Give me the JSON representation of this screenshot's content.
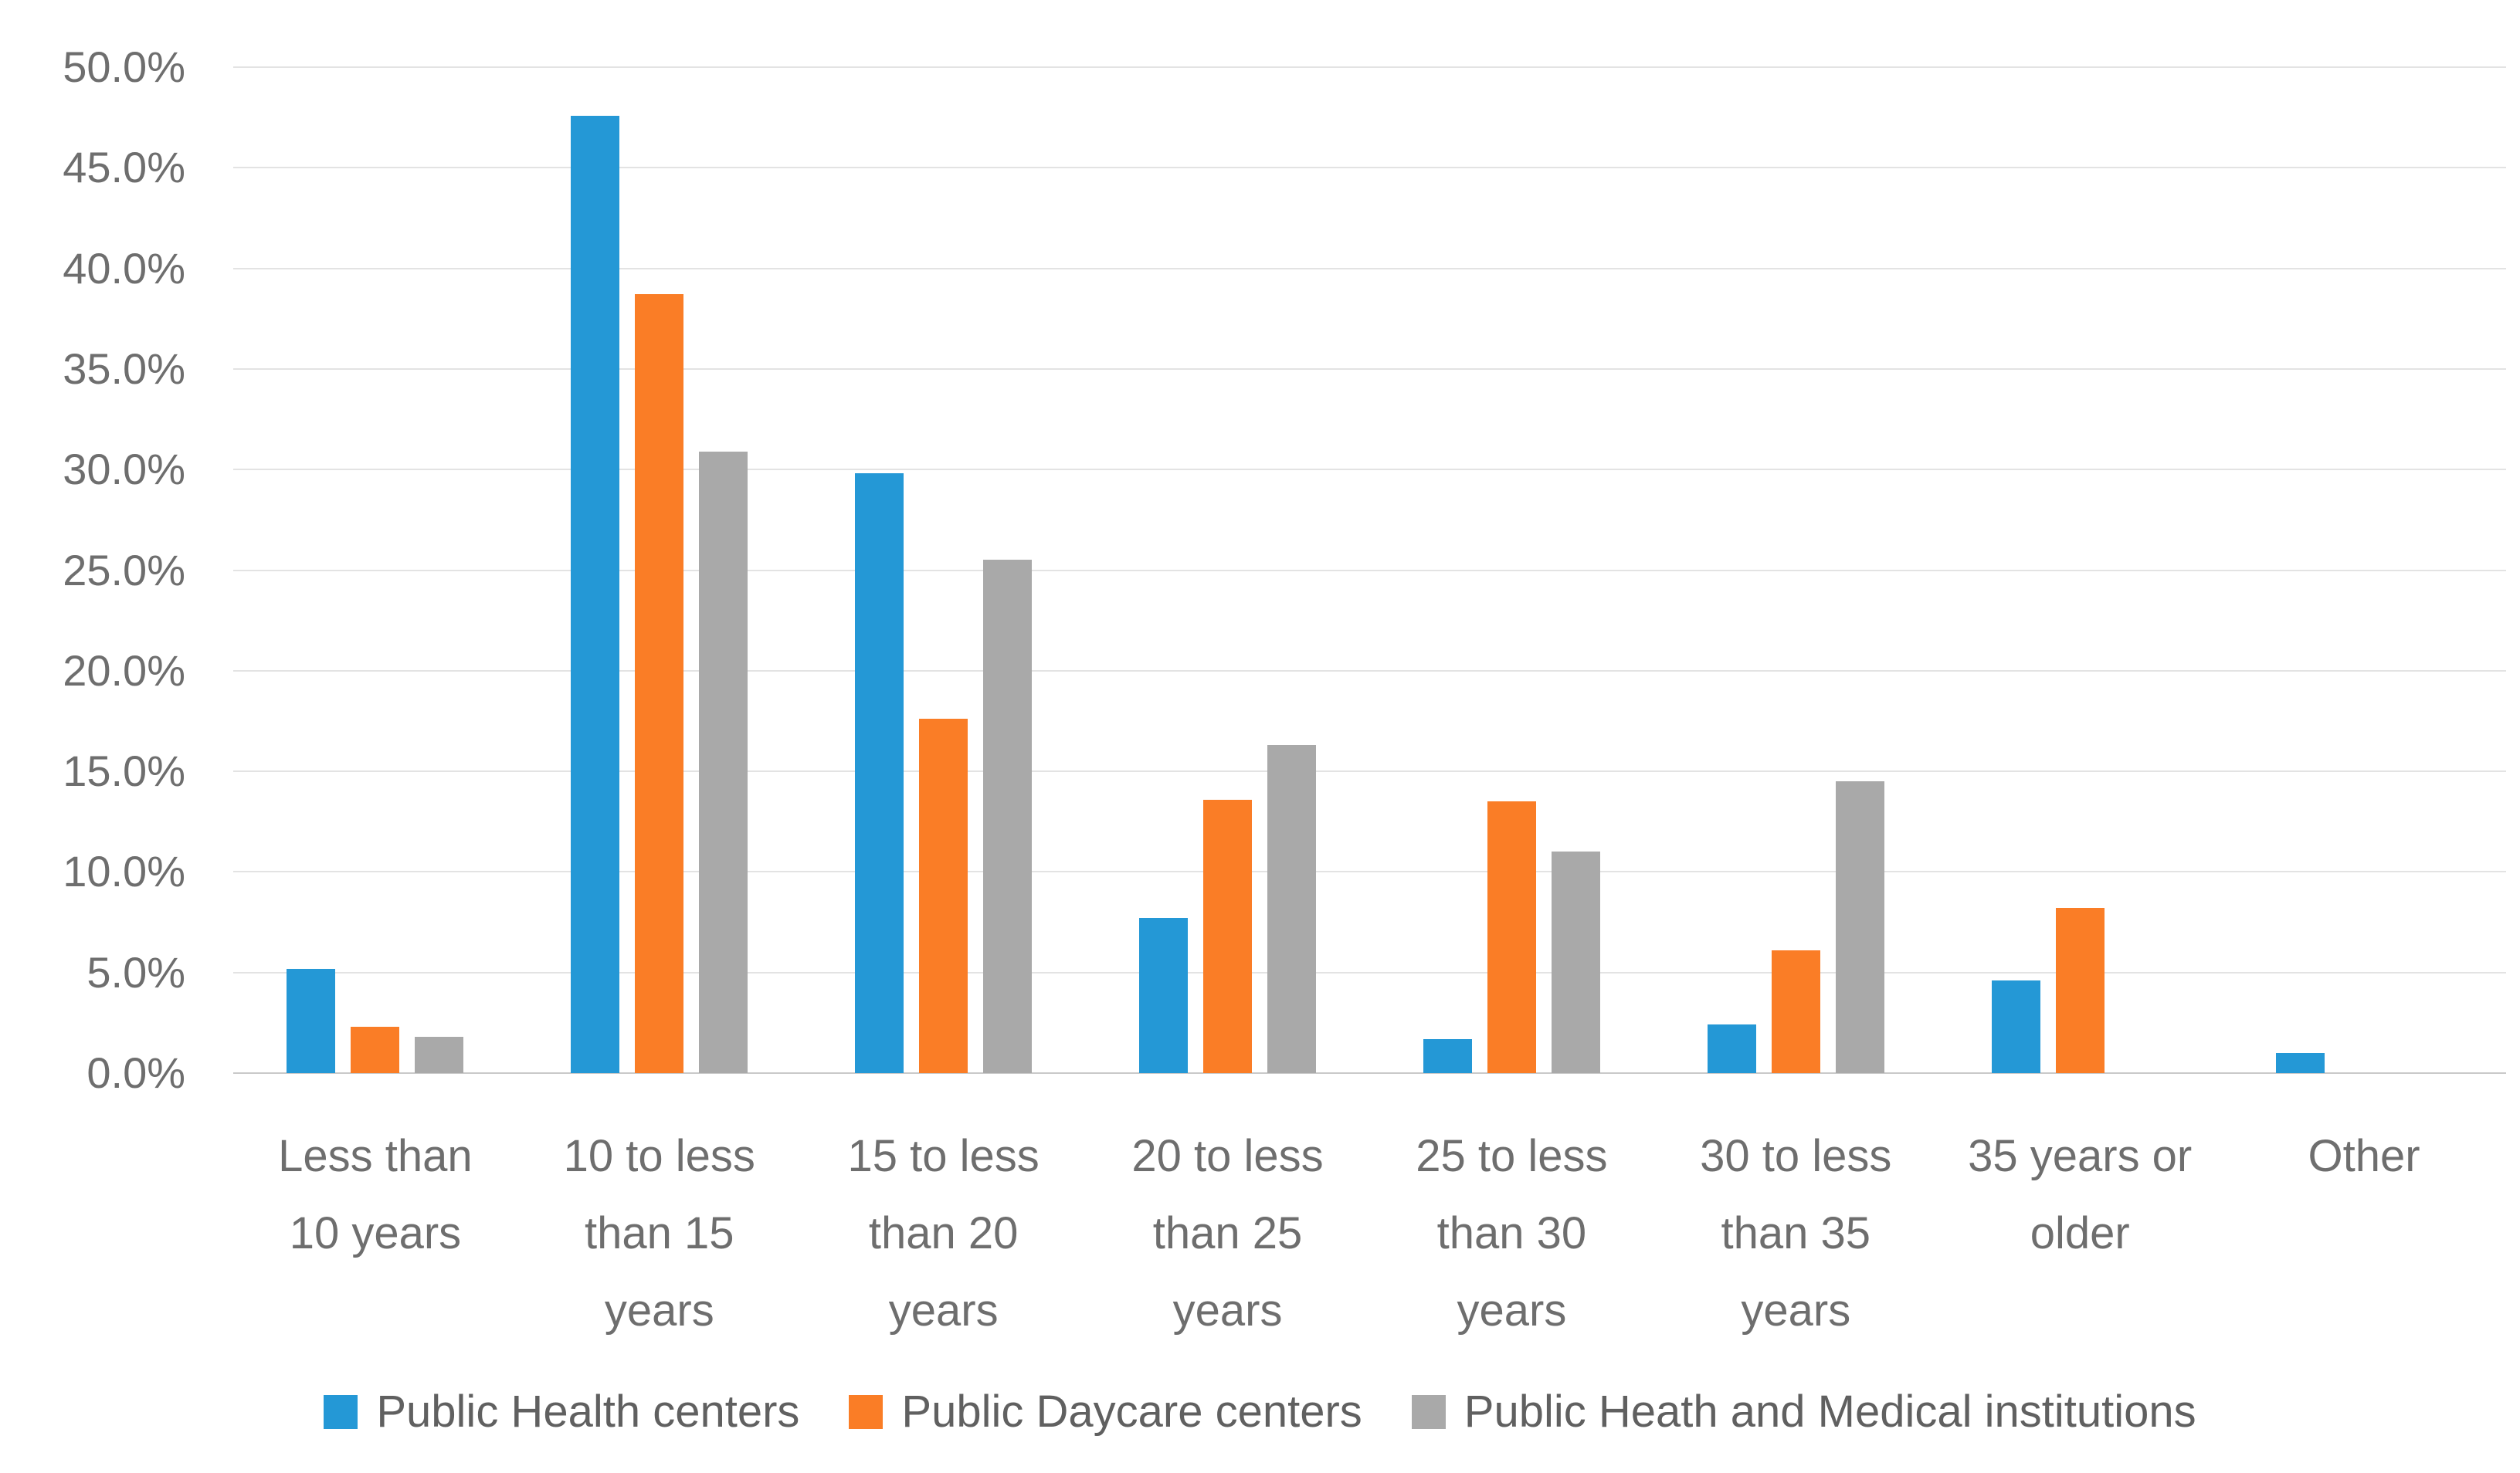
{
  "chart_data": {
    "type": "bar",
    "title": "",
    "xlabel": "",
    "ylabel": "",
    "categories": [
      "Less than 10 years",
      "10 to less than 15 years",
      "15 to less than 20 years",
      "20 to less than 25 years",
      "25 to less than 30 years",
      "30 to less than 35 years",
      "35 years or older",
      "Other"
    ],
    "series": [
      {
        "name": "Public Health centers",
        "color": "#2498d6",
        "values": [
          5.2,
          47.6,
          29.8,
          7.7,
          1.7,
          2.4,
          4.6,
          1.0
        ]
      },
      {
        "name": "Public Daycare centers",
        "color": "#fa7d26",
        "values": [
          2.3,
          38.7,
          17.6,
          13.6,
          13.5,
          6.1,
          8.2,
          0
        ]
      },
      {
        "name": "Public Heath and Medical institutions",
        "color": "#a9a9a9",
        "values": [
          1.8,
          30.9,
          25.5,
          16.3,
          11.0,
          14.5,
          0,
          0
        ]
      }
    ],
    "ylim": [
      0,
      50
    ],
    "ytick_step": 5,
    "grid": true,
    "legend_position": "bottom"
  },
  "y_axis": {
    "tick_labels": [
      "50.0%",
      "45.0%",
      "40.0%",
      "35.0%",
      "30.0%",
      "25.0%",
      "20.0%",
      "15.0%",
      "10.0%",
      "5.0%",
      "0.0%"
    ]
  },
  "x_axis": {
    "category_lines": [
      [
        "Less than",
        "10 years"
      ],
      [
        "10 to less",
        "than 15",
        "years"
      ],
      [
        "15 to less",
        "than 20",
        "years"
      ],
      [
        "20 to less",
        "than 25",
        "years"
      ],
      [
        "25 to less",
        "than 30",
        "years"
      ],
      [
        "30 to less",
        "than 35",
        "years"
      ],
      [
        "35 years or",
        "older"
      ],
      [
        "Other"
      ]
    ]
  }
}
